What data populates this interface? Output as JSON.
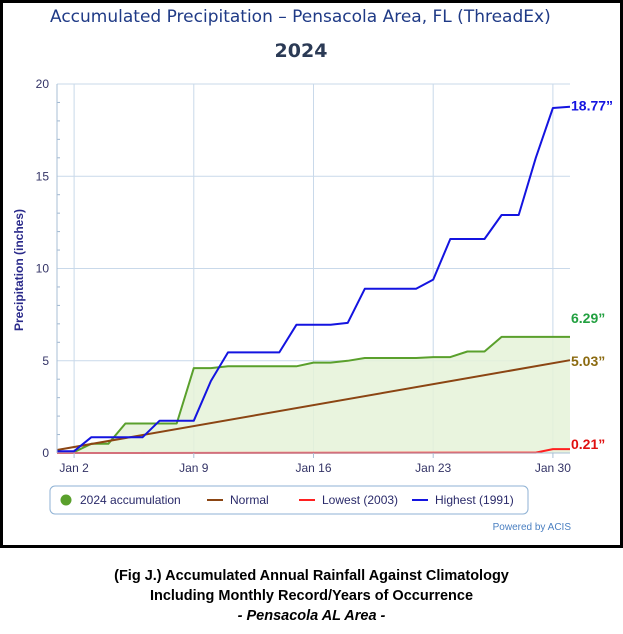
{
  "chart_data": {
    "type": "line",
    "title": "Accumulated Precipitation – Pensacola Area, FL (ThreadEx)",
    "subtitle": "2024",
    "ylabel": "Precipitation (inches)",
    "xlabel": "",
    "ylim": [
      0,
      20
    ],
    "xlim": [
      1,
      31
    ],
    "yticks": [
      "0",
      "5",
      "10",
      "15",
      "20"
    ],
    "xticks": [
      {
        "day": 2,
        "label": "Jan 2"
      },
      {
        "day": 9,
        "label": "Jan 9"
      },
      {
        "day": 16,
        "label": "Jan 16"
      },
      {
        "day": 23,
        "label": "Jan 23"
      },
      {
        "day": 30,
        "label": "Jan 30"
      }
    ],
    "grid": true,
    "legend_position": "bottom",
    "series": [
      {
        "name": "2024 accumulation",
        "color": "#5aa02c",
        "style": "area",
        "legend_marker": "dot",
        "x": [
          1,
          2,
          3,
          4,
          5,
          6,
          7,
          8,
          9,
          10,
          11,
          12,
          13,
          14,
          15,
          16,
          17,
          18,
          19,
          20,
          21,
          22,
          23,
          24,
          25,
          26,
          27,
          28,
          29,
          30,
          31
        ],
        "y": [
          0.05,
          0.05,
          0.5,
          0.5,
          1.6,
          1.6,
          1.6,
          1.6,
          4.6,
          4.6,
          4.7,
          4.7,
          4.7,
          4.7,
          4.7,
          4.9,
          4.9,
          5.0,
          5.15,
          5.15,
          5.15,
          5.15,
          5.2,
          5.2,
          5.5,
          5.5,
          6.29,
          6.29,
          6.29,
          6.29,
          6.29
        ]
      },
      {
        "name": "Normal",
        "color": "#8b4513",
        "style": "line",
        "legend_marker": "line",
        "x": [
          1,
          31
        ],
        "y": [
          0.16,
          5.03
        ]
      },
      {
        "name": "Lowest (2003)",
        "color": "#ff2020",
        "style": "line",
        "legend_marker": "line",
        "x": [
          1,
          2,
          28,
          29,
          30,
          31
        ],
        "y": [
          0.0,
          0.0,
          0.02,
          0.02,
          0.21,
          0.21
        ]
      },
      {
        "name": "Highest (1991)",
        "color": "#1414e0",
        "style": "line",
        "legend_marker": "line",
        "x": [
          1,
          2,
          3,
          4,
          5,
          6,
          7,
          8,
          9,
          10,
          11,
          12,
          13,
          14,
          15,
          16,
          17,
          18,
          19,
          20,
          21,
          22,
          23,
          24,
          25,
          26,
          27,
          28,
          29,
          30,
          31
        ],
        "y": [
          0.1,
          0.1,
          0.85,
          0.85,
          0.85,
          0.85,
          1.75,
          1.75,
          1.75,
          3.9,
          5.45,
          5.45,
          5.45,
          5.45,
          6.95,
          6.95,
          6.95,
          7.05,
          8.9,
          8.9,
          8.9,
          8.9,
          9.4,
          11.6,
          11.6,
          11.6,
          12.9,
          12.9,
          16.0,
          18.7,
          18.77
        ]
      }
    ],
    "annotations": [
      {
        "text": "18.77”",
        "value": 18.77,
        "color": "#1414e0"
      },
      {
        "text": "6.29”",
        "value": 6.29,
        "color": "#22a040"
      },
      {
        "text": "5.03”",
        "value": 5.03,
        "color": "#8b6a10"
      },
      {
        "text": "0.21”",
        "value": 0.21,
        "color": "#e01010"
      }
    ],
    "credit": "Powered by ACIS"
  },
  "caption": {
    "line1": "(Fig J.) Accumulated Annual Rainfall Against  Climatology",
    "line2": "Including Monthly Record/Years of Occurrence",
    "line3": "- Pensacola AL Area -"
  }
}
